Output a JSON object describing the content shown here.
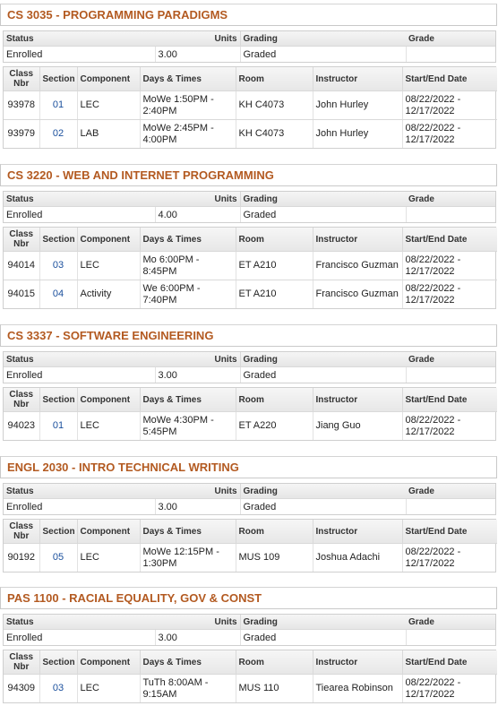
{
  "headers": {
    "status": "Status",
    "units": "Units",
    "grading": "Grading",
    "grade": "Grade",
    "class_nbr": "Class Nbr",
    "section": "Section",
    "component": "Component",
    "days_times": "Days & Times",
    "room": "Room",
    "instructor": "Instructor",
    "start_end_date": "Start/End Date"
  },
  "courses": [
    {
      "title": "CS 3035 - PROGRAMMING PARADIGMS",
      "status": "Enrolled",
      "units": "3.00",
      "grading": "Graded",
      "grade": "",
      "sections": [
        {
          "class_nbr": "93978",
          "section": "01",
          "component": "LEC",
          "days_times": "MoWe 1:50PM - 2:40PM",
          "room": "KH C4073",
          "instructor": "John Hurley",
          "dates": "08/22/2022 - 12/17/2022"
        },
        {
          "class_nbr": "93979",
          "section": "02",
          "component": "LAB",
          "days_times": "MoWe 2:45PM - 4:00PM",
          "room": "KH C4073",
          "instructor": "John Hurley",
          "dates": "08/22/2022 - 12/17/2022"
        }
      ]
    },
    {
      "title": "CS 3220 - WEB AND INTERNET PROGRAMMING",
      "status": "Enrolled",
      "units": "4.00",
      "grading": "Graded",
      "grade": "",
      "sections": [
        {
          "class_nbr": "94014",
          "section": "03",
          "component": "LEC",
          "days_times": "Mo 6:00PM - 8:45PM",
          "room": "ET A210",
          "instructor": "Francisco Guzman",
          "dates": "08/22/2022 - 12/17/2022"
        },
        {
          "class_nbr": "94015",
          "section": "04",
          "component": "Activity",
          "days_times": "We 6:00PM - 7:40PM",
          "room": "ET A210",
          "instructor": "Francisco Guzman",
          "dates": "08/22/2022 - 12/17/2022"
        }
      ]
    },
    {
      "title": "CS 3337 - SOFTWARE ENGINEERING",
      "status": "Enrolled",
      "units": "3.00",
      "grading": "Graded",
      "grade": "",
      "sections": [
        {
          "class_nbr": "94023",
          "section": "01",
          "component": "LEC",
          "days_times": "MoWe 4:30PM - 5:45PM",
          "room": "ET A220",
          "instructor": "Jiang Guo",
          "dates": "08/22/2022 - 12/17/2022"
        }
      ]
    },
    {
      "title": "ENGL 2030 - INTRO TECHNICAL WRITING",
      "status": "Enrolled",
      "units": "3.00",
      "grading": "Graded",
      "grade": "",
      "sections": [
        {
          "class_nbr": "90192",
          "section": "05",
          "component": "LEC",
          "days_times": "MoWe 12:15PM - 1:30PM",
          "room": "MUS 109",
          "instructor": "Joshua Adachi",
          "dates": "08/22/2022 - 12/17/2022"
        }
      ]
    },
    {
      "title": "PAS 1100 - RACIAL EQUALITY, GOV & CONST",
      "status": "Enrolled",
      "units": "3.00",
      "grading": "Graded",
      "grade": "",
      "sections": [
        {
          "class_nbr": "94309",
          "section": "03",
          "component": "LEC",
          "days_times": "TuTh 8:00AM - 9:15AM",
          "room": "MUS 110",
          "instructor": "Tiearea Robinson",
          "dates": "08/22/2022 - 12/17/2022"
        }
      ]
    }
  ]
}
